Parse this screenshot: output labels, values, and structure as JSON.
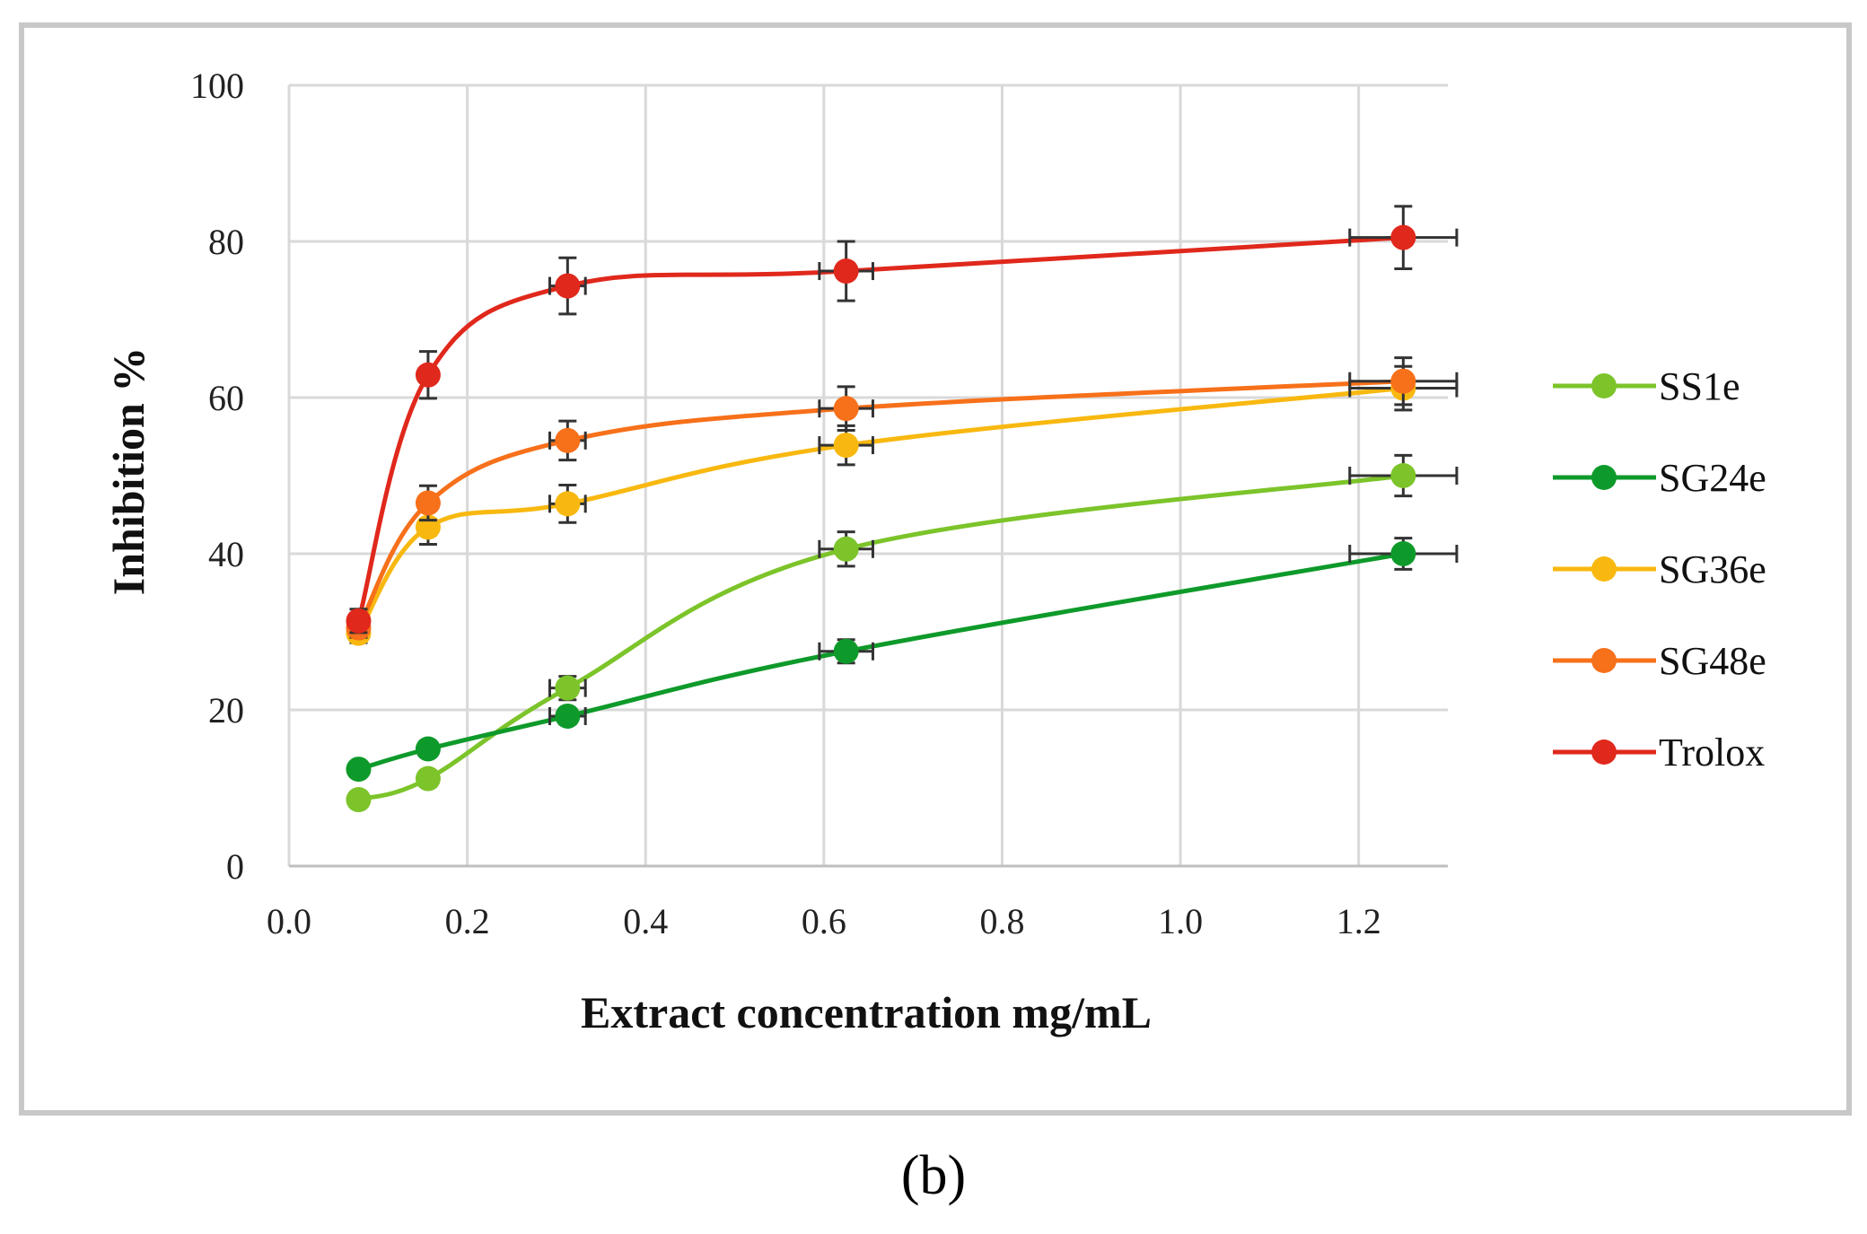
{
  "chart_data": {
    "type": "line",
    "title": "",
    "xlabel": "Extract concentration mg/mL",
    "ylabel": "Inhibition %",
    "xlim": [
      0.0,
      1.3
    ],
    "ylim": [
      0,
      100
    ],
    "xticks": [
      0.0,
      0.2,
      0.4,
      0.6,
      0.8,
      1.0,
      1.2
    ],
    "xtick_labels": [
      "0.0",
      "0.2",
      "0.4",
      "0.6",
      "0.8",
      "1.0",
      "1.2"
    ],
    "yticks": [
      0,
      20,
      40,
      60,
      80,
      100
    ],
    "ytick_labels": [
      "0",
      "20",
      "40",
      "60",
      "80",
      "100"
    ],
    "grid": true,
    "legend_position": "right",
    "x": [
      0.078,
      0.156,
      0.3125,
      0.625,
      1.25
    ],
    "series": [
      {
        "name": "SS1e",
        "color": "#7cc42a",
        "values": [
          8.5,
          11.2,
          22.8,
          40.6,
          50.0
        ],
        "yerr": [
          0.8,
          1.0,
          1.5,
          2.2,
          2.6
        ],
        "xerr": [
          0,
          0,
          0.02,
          0.03,
          0.06
        ]
      },
      {
        "name": "SG24e",
        "color": "#0e9a2a",
        "values": [
          12.4,
          15.0,
          19.2,
          27.5,
          40.0
        ],
        "yerr": [
          0.8,
          0.9,
          1.0,
          1.5,
          2.0
        ],
        "xerr": [
          0,
          0,
          0.02,
          0.03,
          0.06
        ]
      },
      {
        "name": "SG36e",
        "color": "#f8b810",
        "values": [
          29.8,
          43.4,
          46.4,
          53.9,
          61.2
        ],
        "yerr": [
          1.2,
          2.2,
          2.4,
          2.5,
          2.8
        ],
        "xerr": [
          0,
          0,
          0.02,
          0.03,
          0.06
        ]
      },
      {
        "name": "SG48e",
        "color": "#f7701a",
        "values": [
          30.5,
          46.5,
          54.5,
          58.6,
          62.1
        ],
        "yerr": [
          1.2,
          2.2,
          2.5,
          2.8,
          3.0
        ],
        "xerr": [
          0,
          0,
          0.02,
          0.03,
          0.06
        ]
      },
      {
        "name": "Trolox",
        "color": "#e0281c",
        "values": [
          31.4,
          62.9,
          74.3,
          76.2,
          80.5
        ],
        "yerr": [
          1.5,
          3.0,
          3.6,
          3.8,
          4.0
        ],
        "xerr": [
          0,
          0,
          0.02,
          0.03,
          0.06
        ]
      }
    ]
  },
  "caption": "(b)"
}
